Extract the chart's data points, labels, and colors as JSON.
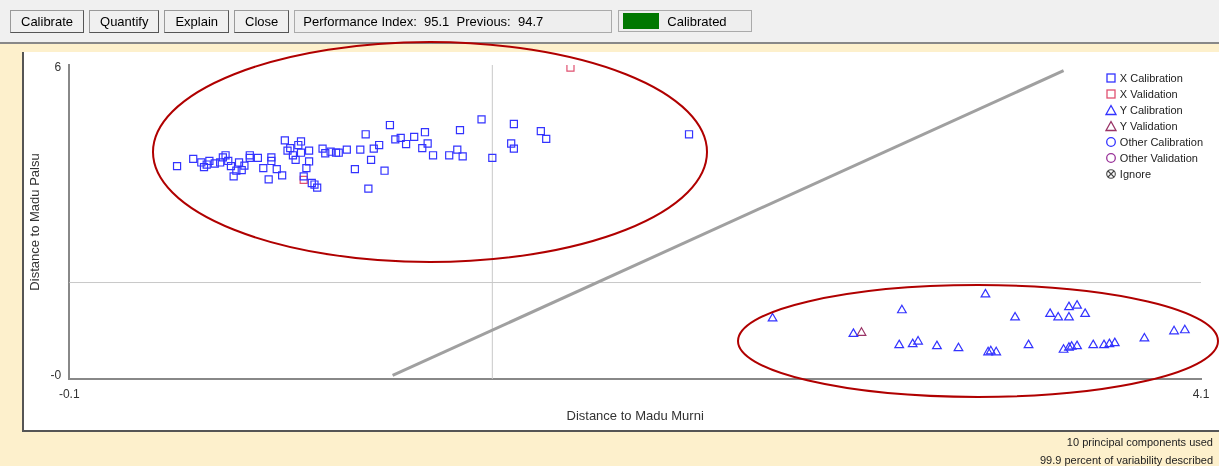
{
  "chart_data": {
    "type": "scatter",
    "xlabel": "Distance to Madu Murni",
    "ylabel": "Distance to Madu Palsu",
    "xlim": [
      -0.1,
      4.1
    ],
    "xticks": [
      {
        "value": -0.1,
        "label": "-0.1"
      },
      {
        "value": 4.1,
        "label": "4.1"
      }
    ],
    "ylim": [
      -0.07,
      6.05
    ],
    "yticks": [
      6,
      {
        "value": 0,
        "label": "-0"
      }
    ],
    "grid": false,
    "legend": "top right",
    "ref_lines": [
      {
        "axis": "x",
        "value": 1.47,
        "color": "#c8c8c8"
      },
      {
        "axis": "y",
        "value": 1.81,
        "color": "#c8c8c8"
      }
    ],
    "annotations": [
      "Calibrate",
      "Quantify",
      "Explain",
      "Close",
      "Performance Index:  95.1  Previous:  94.7",
      "Calibrated",
      "10 principal components used",
      "99.9 percent of variability described"
    ],
    "series": [
      {
        "name": "X Calibration",
        "marker": "square",
        "color": "#3333ff",
        "x": [
          0.3,
          0.36,
          0.39,
          0.4,
          0.41,
          0.42,
          0.44,
          0.46,
          0.47,
          0.48,
          0.49,
          0.5,
          0.51,
          0.52,
          0.53,
          0.54,
          0.55,
          0.57,
          0.57,
          0.6,
          0.62,
          0.64,
          0.65,
          0.65,
          0.67,
          0.69,
          0.7,
          0.71,
          0.72,
          0.73,
          0.74,
          0.75,
          0.76,
          0.76,
          0.77,
          0.78,
          0.79,
          0.79,
          0.8,
          0.81,
          0.82,
          0.84,
          0.85,
          0.87,
          0.89,
          0.9,
          0.93,
          0.96,
          0.98,
          1.0,
          1.01,
          1.02,
          1.03,
          1.05,
          1.07,
          1.09,
          1.11,
          1.13,
          1.15,
          1.18,
          1.21,
          1.22,
          1.23,
          1.25,
          1.31,
          1.34,
          1.35,
          1.36,
          1.43,
          1.47,
          1.55,
          1.54,
          1.55,
          1.65,
          1.67,
          2.2
        ],
        "values": [
          4.08,
          4.22,
          4.15,
          4.06,
          4.11,
          4.18,
          4.13,
          4.15,
          4.25,
          4.29,
          4.18,
          4.08,
          3.88,
          3.99,
          4.15,
          4.0,
          4.09,
          4.24,
          4.29,
          4.24,
          4.04,
          3.82,
          4.18,
          4.25,
          4.02,
          3.9,
          4.58,
          4.38,
          4.43,
          4.29,
          4.2,
          4.49,
          4.34,
          4.56,
          3.88,
          4.04,
          4.17,
          4.38,
          3.75,
          3.72,
          3.66,
          4.42,
          4.33,
          4.36,
          4.34,
          4.34,
          4.4,
          4.02,
          4.4,
          4.7,
          3.64,
          4.2,
          4.42,
          4.49,
          3.99,
          4.88,
          4.6,
          4.63,
          4.51,
          4.65,
          4.43,
          4.74,
          4.52,
          4.29,
          4.29,
          4.4,
          4.78,
          4.27,
          4.99,
          4.24,
          4.9,
          4.52,
          4.42,
          4.76,
          4.61,
          4.7
        ]
      },
      {
        "name": "X Validation",
        "marker": "square",
        "color": "#e05070",
        "x": [
          1.76,
          0.77
        ],
        "values": [
          6.0,
          3.81
        ]
      },
      {
        "name": "Y Calibration",
        "marker": "triangle",
        "color": "#3333ff",
        "x": [
          2.51,
          2.81,
          2.99,
          2.98,
          3.03,
          3.05,
          3.12,
          3.2,
          3.3,
          3.31,
          3.32,
          3.34,
          3.41,
          3.46,
          3.54,
          3.59,
          3.57,
          3.61,
          3.61,
          3.64,
          3.61,
          3.62,
          3.64,
          3.67,
          3.7,
          3.74,
          3.76,
          3.78,
          3.89,
          4.0,
          4.04
        ],
        "values": [
          1.11,
          0.81,
          1.27,
          0.59,
          0.61,
          0.66,
          0.57,
          0.53,
          1.58,
          0.45,
          0.47,
          0.45,
          1.13,
          0.59,
          1.2,
          0.5,
          1.13,
          1.13,
          1.33,
          1.36,
          0.54,
          0.56,
          0.57,
          1.2,
          0.59,
          0.59,
          0.61,
          0.63,
          0.72,
          0.86,
          0.88
        ]
      },
      {
        "name": "Y Validation",
        "marker": "triangle",
        "color": "#993366",
        "x": [
          2.84
        ],
        "values": [
          0.83
        ]
      },
      {
        "name": "Other Calibration",
        "marker": "circle",
        "color": "#3333ff"
      },
      {
        "name": "Other Validation",
        "marker": "circle",
        "color": "#993399"
      },
      {
        "name": "Ignore",
        "marker": "cross",
        "color": "#444444"
      },
      {
        "type": "line",
        "color": "#a0a0a0",
        "x": [
          1.1,
          3.59
        ],
        "values": [
          0,
          5.94
        ]
      }
    ]
  }
}
